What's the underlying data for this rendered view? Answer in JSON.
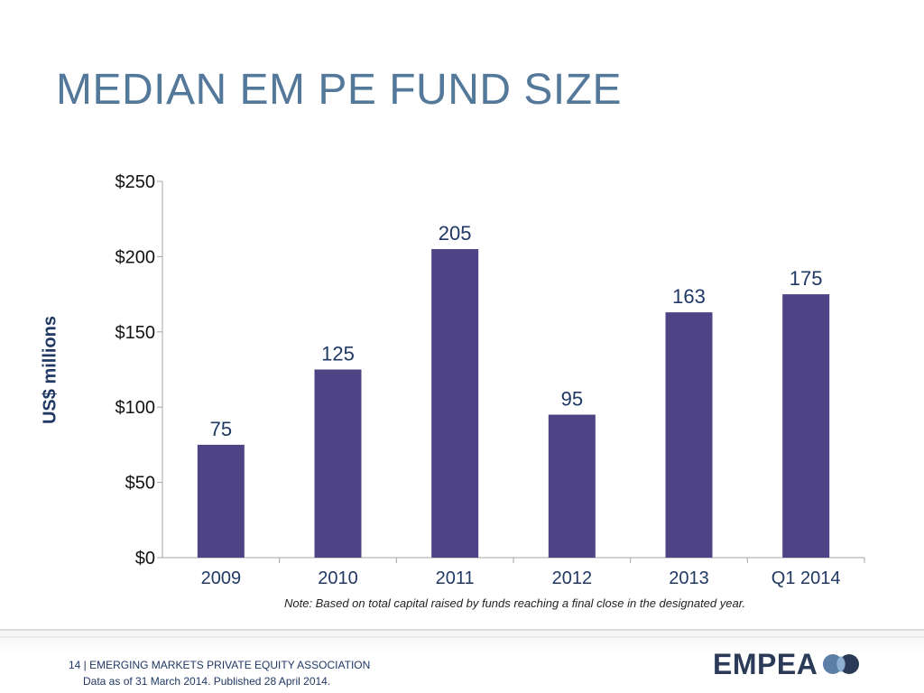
{
  "slide": {
    "title": "MEDIAN EM PE FUND SIZE"
  },
  "chart_data": {
    "type": "bar",
    "categories": [
      "2009",
      "2010",
      "2011",
      "2012",
      "2013",
      "Q1 2014"
    ],
    "values": [
      75,
      125,
      205,
      95,
      163,
      175
    ],
    "data_labels": [
      "75",
      "125",
      "205",
      "95",
      "163",
      "175"
    ],
    "ylabel": "US$ millions",
    "ylim": [
      0,
      250
    ],
    "yticks": [
      0,
      50,
      100,
      150,
      200,
      250
    ],
    "ytick_labels": [
      "$0",
      "$50",
      "$100",
      "$150",
      "$200",
      "$250"
    ],
    "bar_color": "#4e4485",
    "grid": false,
    "note": "Note: Based on total capital raised by funds reaching a final close in the designated year."
  },
  "footer": {
    "page_info": "14 | EMERGING MARKETS PRIVATE EQUITY ASSOCIATION",
    "data_date": "Data as of 31 March 2014. Published 28 April 2014.",
    "logo_text": "EMPEA"
  }
}
